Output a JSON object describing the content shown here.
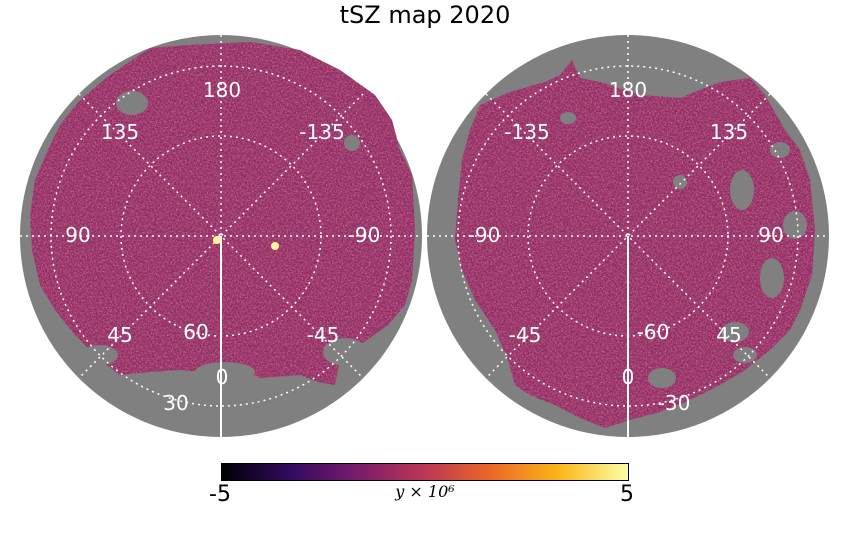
{
  "title": "tSZ map 2020",
  "colorbar": {
    "min_label": "-5",
    "max_label": "5",
    "label": "y × 10⁶",
    "colors": [
      "#000004",
      "#320a5e",
      "#781c6d",
      "#bc3754",
      "#ed6925",
      "#fbb61a",
      "#fcffa4"
    ]
  },
  "maps": [
    {
      "name": "north",
      "lon_labels": [
        "180",
        "135",
        "-135",
        "90",
        "-90",
        "45",
        "-45",
        "0"
      ],
      "lat_labels": [
        "60",
        "30"
      ]
    },
    {
      "name": "south",
      "lon_labels": [
        "180",
        "-135",
        "135",
        "-90",
        "90",
        "-45",
        "45",
        "0"
      ],
      "lat_labels": [
        "-60",
        "-30"
      ]
    }
  ]
}
